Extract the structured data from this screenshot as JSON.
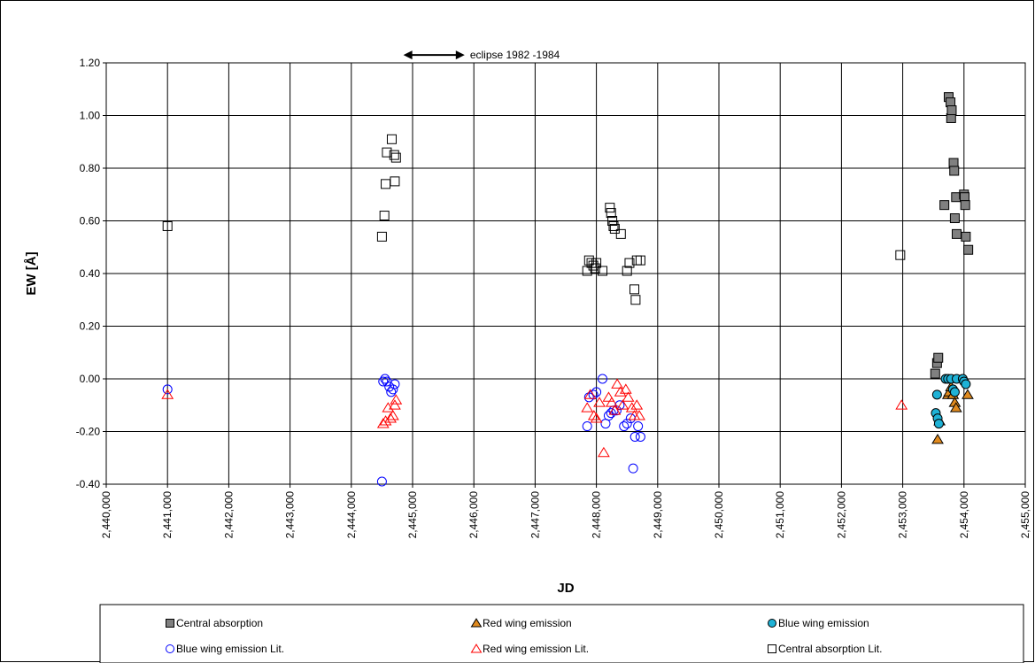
{
  "chart_data": {
    "type": "scatter",
    "title": "",
    "xlabel": "JD",
    "ylabel": "EW [Å]",
    "xlim": [
      2440000,
      2455000
    ],
    "ylim": [
      -0.4,
      1.2
    ],
    "x_ticks": [
      "2,440,000",
      "2,441,000",
      "2,442,000",
      "2,443,000",
      "2,444,000",
      "2,445,000",
      "2,446,000",
      "2,447,000",
      "2,448,000",
      "2,449,000",
      "2,450,000",
      "2,451,000",
      "2,452,000",
      "2,453,000",
      "2,454,000",
      "2,455,000"
    ],
    "y_ticks": [
      "-0.40",
      "-0.20",
      "0.00",
      "0.20",
      "0.40",
      "0.60",
      "0.80",
      "1.00",
      "1.20"
    ],
    "grid": true,
    "legend_position": "bottom",
    "annotation": {
      "text": "eclipse 1982 -1984",
      "x_start": 2444850,
      "x_end": 2445850,
      "y": 1.23
    },
    "series": [
      {
        "name": "Central absorption",
        "marker": "square",
        "filled": true,
        "color": "#808080",
        "edge": "#000000",
        "points": [
          [
            2453530,
            0.02
          ],
          [
            2453560,
            0.06
          ],
          [
            2453580,
            0.08
          ],
          [
            2453680,
            0.66
          ],
          [
            2453750,
            1.07
          ],
          [
            2453780,
            1.05
          ],
          [
            2453790,
            0.99
          ],
          [
            2453800,
            1.02
          ],
          [
            2453830,
            0.82
          ],
          [
            2453840,
            0.79
          ],
          [
            2453850,
            0.61
          ],
          [
            2453870,
            0.69
          ],
          [
            2453880,
            0.55
          ],
          [
            2454000,
            0.7
          ],
          [
            2454010,
            0.69
          ],
          [
            2454020,
            0.66
          ],
          [
            2454030,
            0.54
          ],
          [
            2454070,
            0.49
          ]
        ]
      },
      {
        "name": "Red wing emission",
        "marker": "triangle",
        "filled": true,
        "color": "#e08a1e",
        "edge": "#000000",
        "points": [
          [
            2453570,
            -0.23
          ],
          [
            2453600,
            -0.16
          ],
          [
            2453740,
            -0.06
          ],
          [
            2453760,
            -0.05
          ],
          [
            2453790,
            -0.03
          ],
          [
            2453820,
            -0.06
          ],
          [
            2453850,
            -0.09
          ],
          [
            2453870,
            -0.11
          ],
          [
            2454060,
            -0.06
          ]
        ]
      },
      {
        "name": "Blue wing emission",
        "marker": "circle",
        "filled": true,
        "color": "#1fb2d6",
        "edge": "#000000",
        "points": [
          [
            2453540,
            -0.13
          ],
          [
            2453560,
            -0.06
          ],
          [
            2453570,
            -0.15
          ],
          [
            2453590,
            -0.17
          ],
          [
            2453700,
            0.0
          ],
          [
            2453740,
            0.0
          ],
          [
            2453790,
            0.0
          ],
          [
            2453820,
            -0.04
          ],
          [
            2453850,
            -0.05
          ],
          [
            2453880,
            0.0
          ],
          [
            2453980,
            0.0
          ],
          [
            2454000,
            -0.01
          ],
          [
            2454030,
            -0.02
          ]
        ]
      },
      {
        "name": "Blue wing emission Lit.",
        "marker": "circle",
        "filled": false,
        "color": "#0000ff",
        "points": [
          [
            2441000,
            -0.04
          ],
          [
            2444500,
            -0.39
          ],
          [
            2444520,
            -0.01
          ],
          [
            2444550,
            0.0
          ],
          [
            2444580,
            -0.01
          ],
          [
            2444620,
            -0.03
          ],
          [
            2444650,
            -0.05
          ],
          [
            2444680,
            -0.04
          ],
          [
            2444710,
            -0.02
          ],
          [
            2447850,
            -0.18
          ],
          [
            2447880,
            -0.07
          ],
          [
            2447950,
            -0.06
          ],
          [
            2448000,
            -0.05
          ],
          [
            2448100,
            0.0
          ],
          [
            2448150,
            -0.17
          ],
          [
            2448200,
            -0.14
          ],
          [
            2448240,
            -0.13
          ],
          [
            2448280,
            -0.12
          ],
          [
            2448330,
            -0.12
          ],
          [
            2448380,
            -0.1
          ],
          [
            2448450,
            -0.18
          ],
          [
            2448500,
            -0.17
          ],
          [
            2448560,
            -0.15
          ],
          [
            2448600,
            -0.34
          ],
          [
            2448630,
            -0.22
          ],
          [
            2448680,
            -0.18
          ],
          [
            2448720,
            -0.22
          ]
        ]
      },
      {
        "name": "Red wing emission Lit.",
        "marker": "triangle",
        "filled": false,
        "color": "#ff0000",
        "points": [
          [
            2441000,
            -0.06
          ],
          [
            2444520,
            -0.17
          ],
          [
            2444560,
            -0.16
          ],
          [
            2444600,
            -0.11
          ],
          [
            2444640,
            -0.15
          ],
          [
            2444680,
            -0.14
          ],
          [
            2444710,
            -0.1
          ],
          [
            2444730,
            -0.08
          ],
          [
            2447850,
            -0.11
          ],
          [
            2447900,
            -0.06
          ],
          [
            2447960,
            -0.14
          ],
          [
            2448000,
            -0.15
          ],
          [
            2448050,
            -0.09
          ],
          [
            2448120,
            -0.28
          ],
          [
            2448200,
            -0.07
          ],
          [
            2448250,
            -0.09
          ],
          [
            2448300,
            -0.12
          ],
          [
            2448340,
            -0.02
          ],
          [
            2448390,
            -0.05
          ],
          [
            2448430,
            -0.1
          ],
          [
            2448480,
            -0.04
          ],
          [
            2448520,
            -0.07
          ],
          [
            2448580,
            -0.11
          ],
          [
            2448620,
            -0.14
          ],
          [
            2448660,
            -0.1
          ],
          [
            2448700,
            -0.14
          ],
          [
            2452980,
            -0.1
          ]
        ]
      },
      {
        "name": "Central absorption Lit.",
        "marker": "square",
        "filled": false,
        "color": "#000000",
        "points": [
          [
            2441000,
            0.58
          ],
          [
            2444500,
            0.54
          ],
          [
            2444540,
            0.62
          ],
          [
            2444560,
            0.74
          ],
          [
            2444580,
            0.86
          ],
          [
            2444660,
            0.91
          ],
          [
            2444700,
            0.85
          ],
          [
            2444710,
            0.75
          ],
          [
            2444730,
            0.84
          ],
          [
            2447850,
            0.41
          ],
          [
            2447880,
            0.45
          ],
          [
            2447920,
            0.44
          ],
          [
            2447950,
            0.43
          ],
          [
            2447980,
            0.42
          ],
          [
            2448000,
            0.44
          ],
          [
            2448100,
            0.41
          ],
          [
            2448220,
            0.65
          ],
          [
            2448240,
            0.63
          ],
          [
            2448260,
            0.6
          ],
          [
            2448280,
            0.58
          ],
          [
            2448300,
            0.57
          ],
          [
            2448400,
            0.55
          ],
          [
            2448500,
            0.41
          ],
          [
            2448540,
            0.44
          ],
          [
            2448620,
            0.34
          ],
          [
            2448640,
            0.3
          ],
          [
            2448660,
            0.45
          ],
          [
            2448720,
            0.45
          ],
          [
            2452960,
            0.47
          ]
        ]
      }
    ]
  }
}
